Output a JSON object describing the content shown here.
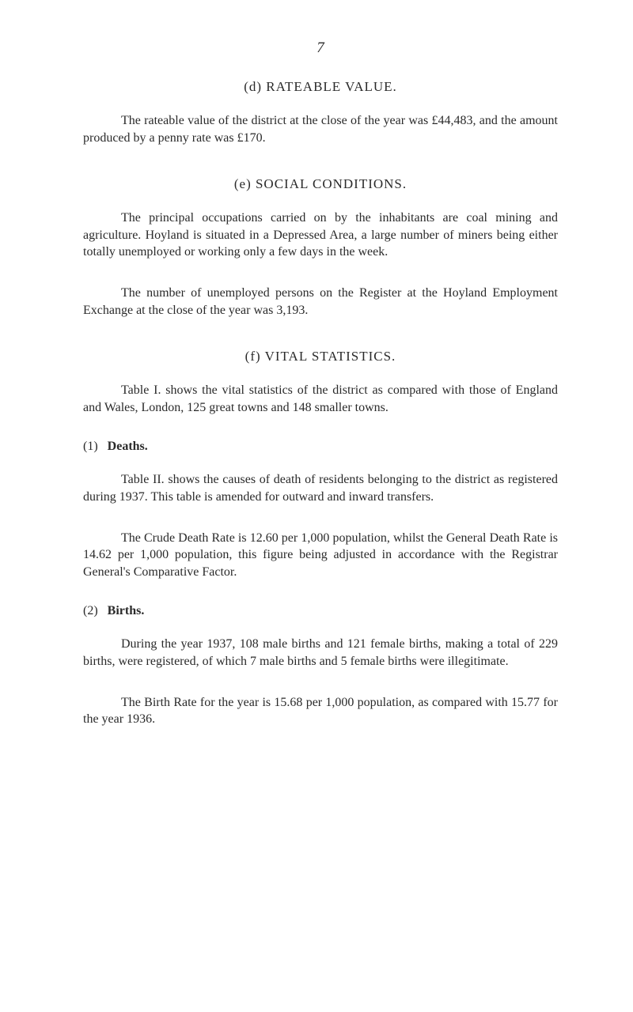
{
  "page_number": "7",
  "section_d": {
    "heading": "(d)  RATEABLE  VALUE.",
    "para1": "The rateable value of the district at the close of the year was £44,483, and the amount produced by a penny rate was £170."
  },
  "section_e": {
    "heading": "(e)  SOCIAL  CONDITIONS.",
    "para1": "The principal occupations carried on by the inhabitants are coal mining and agriculture. Hoyland is situated in a Depressed Area, a large number of miners being either totally unemployed or working only a few days in the week.",
    "para2": "The number of unemployed persons on the Register at the Hoyland Employment Exchange at the close of the year was 3,193."
  },
  "section_f": {
    "heading": "(f)  VITAL  STATISTICS.",
    "para1": "Table I. shows the vital statistics of the district as compared with those of England and Wales, London, 125 great towns and 148 smaller towns."
  },
  "deaths": {
    "num": "(1)",
    "title": "Deaths.",
    "para1": "Table II. shows the causes of death of residents belong­ing to the district as registered during 1937. This table is amended for outward and inward transfers.",
    "para2": "The Crude Death Rate is 12.60 per 1,000 population, whilst the General Death Rate is 14.62 per 1,000 population, this figure being adjusted in accordance with the Registrar General's Comparative Factor."
  },
  "births": {
    "num": "(2)",
    "title": "Births.",
    "para1": "During the year 1937, 108 male births and 121 female births, making a total of 229 births, were registered, of which 7 male births and 5 female births were illegitimate.",
    "para2": "The Birth Rate for the year is 15.68 per 1,000 population, as compared with 15.77 for the year 1936."
  },
  "colors": {
    "background": "#ffffff",
    "text": "#2a2a2a"
  },
  "typography": {
    "body_fontsize": 16,
    "heading_fontsize": 17,
    "page_number_fontsize": 19,
    "font_family": "Georgia, serif",
    "line_height": 1.35,
    "text_indent": 48
  }
}
